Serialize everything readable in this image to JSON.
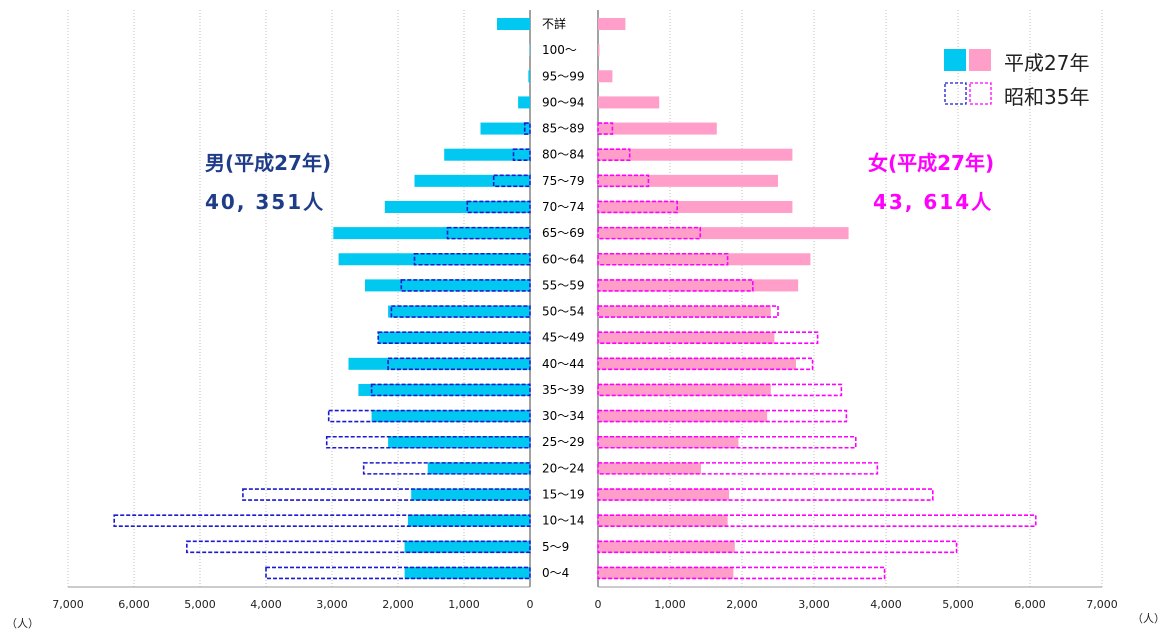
{
  "chart_data": {
    "type": "bar",
    "subtype": "population-pyramid",
    "categories": [
      "不詳",
      "100～",
      "95～99",
      "90～94",
      "85～89",
      "80～84",
      "75～79",
      "70～74",
      "65～69",
      "60～64",
      "55～59",
      "50～54",
      "45～49",
      "40～44",
      "35～39",
      "30～34",
      "25～29",
      "20～24",
      "15～19",
      "10～14",
      "5～9",
      "0～4"
    ],
    "series": [
      {
        "name": "男(平成27年)",
        "side": "left",
        "style": "solid",
        "color": "#00c8f0",
        "values": [
          500,
          5,
          25,
          180,
          750,
          1300,
          1750,
          2200,
          2980,
          2900,
          2500,
          2150,
          2300,
          2750,
          2600,
          2400,
          2150,
          1550,
          1800,
          1850,
          1900,
          1900
        ]
      },
      {
        "name": "男(昭和35年)",
        "side": "left",
        "style": "dashed",
        "color": "#1a1ad0",
        "values": [
          0,
          0,
          0,
          0,
          80,
          250,
          550,
          950,
          1250,
          1750,
          1950,
          2100,
          2300,
          2150,
          2400,
          3050,
          3080,
          2520,
          4350,
          6300,
          5200,
          4000
        ]
      },
      {
        "name": "女(平成27年)",
        "side": "right",
        "style": "solid",
        "color": "#ff9ec8",
        "values": [
          380,
          20,
          200,
          850,
          1650,
          2700,
          2500,
          2700,
          3480,
          2950,
          2780,
          2400,
          2450,
          2750,
          2400,
          2350,
          1950,
          1430,
          1820,
          1800,
          1900,
          1880
        ]
      },
      {
        "name": "女(昭和35年)",
        "side": "right",
        "style": "dashed",
        "color": "#ff00ff",
        "values": [
          0,
          0,
          0,
          0,
          200,
          440,
          700,
          1100,
          1420,
          1800,
          2150,
          2500,
          3050,
          2980,
          3380,
          3450,
          3580,
          3880,
          4650,
          6080,
          4980,
          3980
        ]
      }
    ],
    "x_ticks_left": [
      "7,000",
      "6,000",
      "5,000",
      "4,000",
      "3,000",
      "2,000",
      "1,000",
      "0"
    ],
    "x_ticks_right": [
      "0",
      "1,000",
      "2,000",
      "3,000",
      "4,000",
      "5,000",
      "6,000",
      "7,000"
    ],
    "xlim": [
      0,
      7000
    ],
    "unit_left": "（人）",
    "unit_right": "（人）",
    "grid": "vertical",
    "legend": {
      "placement": "top-right",
      "items": [
        "平成27年",
        "昭和35年"
      ]
    },
    "annotations": {
      "male_title": "男(平成27年)",
      "male_total": "40, 351人",
      "female_title": "女(平成27年)",
      "female_total": "43, 614人"
    },
    "colors": {
      "male_2015": "#00c8f0",
      "male_1960": "#1a1ad0",
      "female_2015": "#ff9ec8",
      "female_1960": "#ff00ff"
    }
  }
}
